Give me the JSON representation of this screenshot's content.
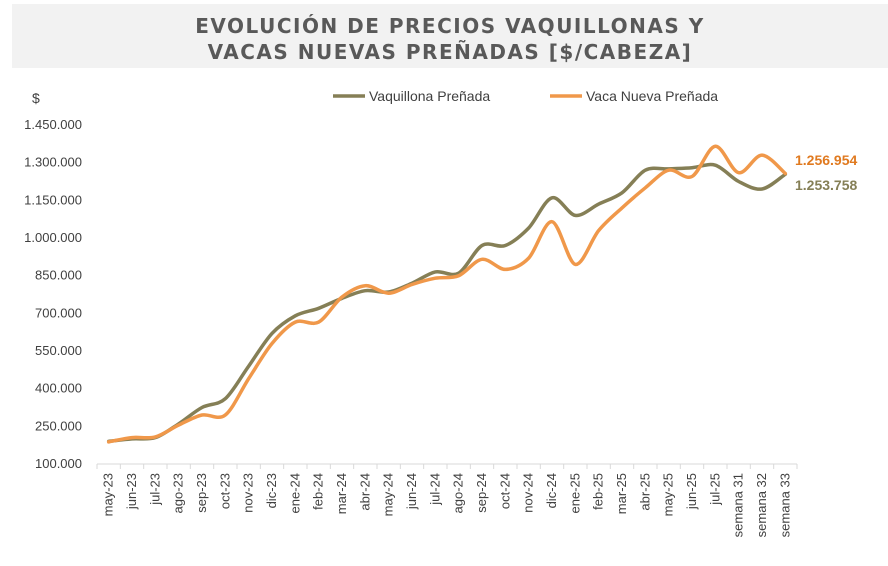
{
  "chart_data": {
    "type": "line",
    "title_line1": "EVOLUCIÓN DE PRECIOS VAQUILLONAS Y",
    "title_line2": "VACAS NUEVAS PREÑADAS [$/CABEZA]",
    "ylabel": "$",
    "ylim": [
      100000,
      1450000
    ],
    "yticks": [
      100000,
      250000,
      400000,
      550000,
      700000,
      850000,
      1000000,
      1150000,
      1300000,
      1450000
    ],
    "ytick_labels": [
      "100.000",
      "250.000",
      "400.000",
      "550.000",
      "700.000",
      "850.000",
      "1.000.000",
      "1.150.000",
      "1.300.000",
      "1.450.000"
    ],
    "categories": [
      "may-23",
      "jun-23",
      "jul-23",
      "ago-23",
      "sep-23",
      "oct-23",
      "nov-23",
      "dic-23",
      "ene-24",
      "feb-24",
      "mar-24",
      "abr-24",
      "may-24",
      "jun-24",
      "jul-24",
      "ago-24",
      "sep-24",
      "oct-24",
      "nov-24",
      "dic-24",
      "ene-25",
      "feb-25",
      "mar-25",
      "abr-25",
      "may-25",
      "jun-25",
      "jul-25",
      "semana 31",
      "semana 32",
      "semana 33"
    ],
    "legend_position": "top",
    "grid": false,
    "series": [
      {
        "name": "Vaquillona Preñada",
        "color": "#857f56",
        "values": [
          190000,
          200000,
          205000,
          260000,
          325000,
          360000,
          490000,
          620000,
          690000,
          720000,
          760000,
          790000,
          785000,
          820000,
          865000,
          860000,
          970000,
          970000,
          1040000,
          1160000,
          1090000,
          1135000,
          1180000,
          1270000,
          1275000,
          1280000,
          1290000,
          1225000,
          1195000,
          1253758
        ],
        "end_label": "1.253.758"
      },
      {
        "name": "Vaca Nueva Preñada",
        "color": "#f0984a",
        "values": [
          188000,
          205000,
          208000,
          255000,
          295000,
          295000,
          440000,
          580000,
          665000,
          665000,
          765000,
          810000,
          780000,
          815000,
          840000,
          850000,
          915000,
          875000,
          920000,
          1065000,
          895000,
          1030000,
          1120000,
          1200000,
          1270000,
          1245000,
          1365000,
          1260000,
          1330000,
          1256954
        ],
        "end_label": "1.256.954"
      }
    ]
  }
}
